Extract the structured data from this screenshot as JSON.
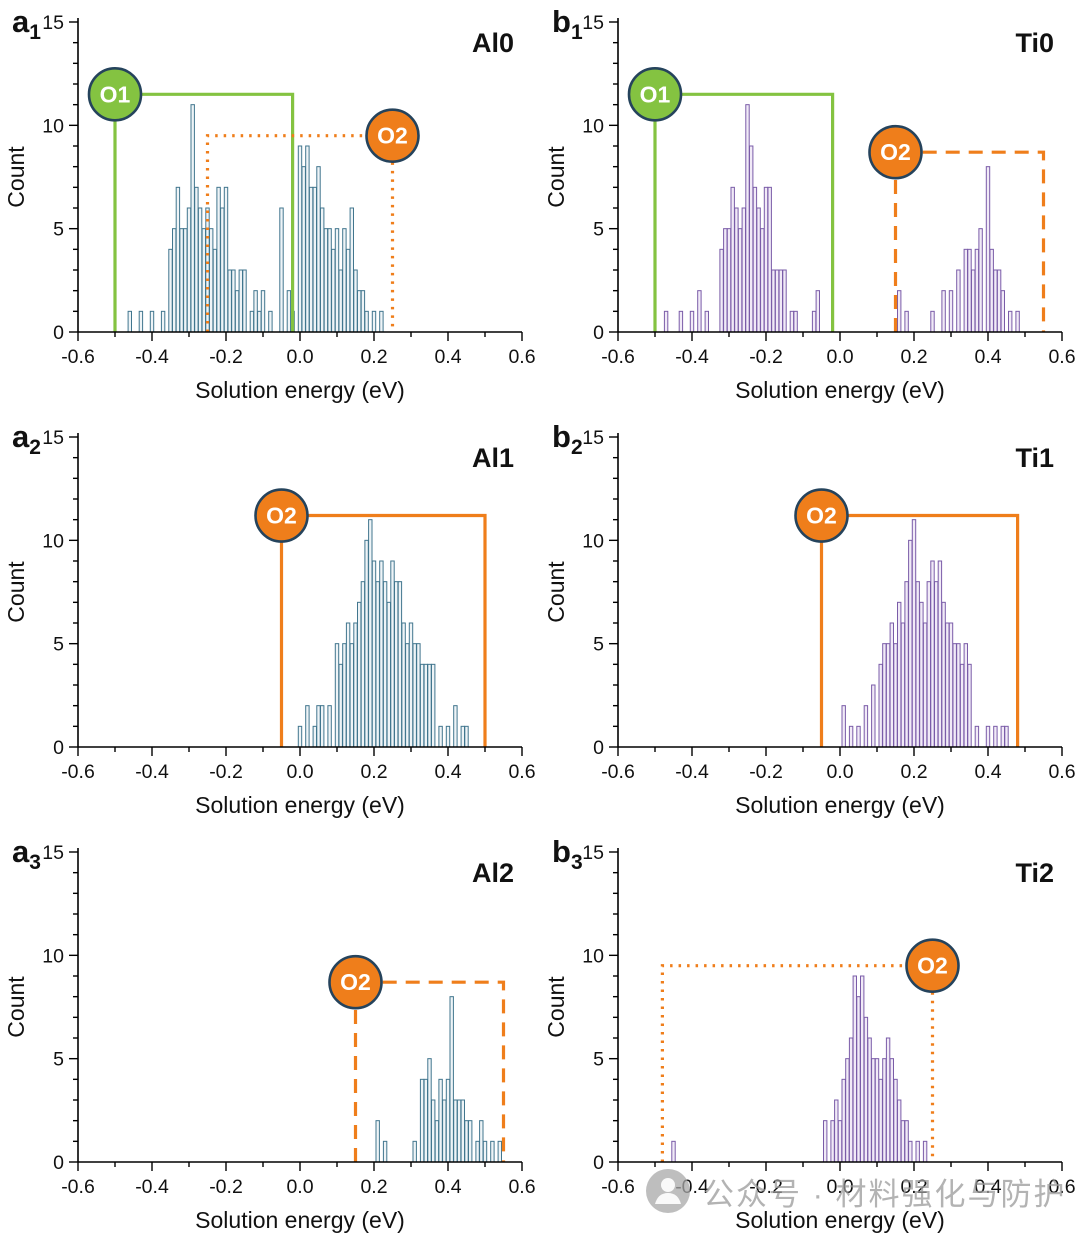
{
  "watermark": {
    "text": "公众号 · 材料强化与防护"
  },
  "colors": {
    "green": "#84c341",
    "orange": "#ef7e1b",
    "circle_border": "#25435c",
    "bar_blue": "#41768e",
    "bar_purple": "#7a5ca8"
  },
  "chart_data": [
    {
      "type": "bar",
      "panel_letter": "a",
      "panel_sub": "1",
      "title": "Al0",
      "xlabel": "Solution energy (eV)",
      "ylabel": "Count",
      "xlim": [
        -0.6,
        0.6
      ],
      "ylim": [
        0,
        15
      ],
      "x_major_ticks": [
        -0.6,
        -0.4,
        -0.2,
        0.0,
        0.2,
        0.4,
        0.6
      ],
      "y_major_ticks": [
        0,
        5,
        10,
        15
      ],
      "bin_width": 0.01,
      "bar_color": "#41768e",
      "bar_fill": "#eef4f7",
      "bars": [
        [
          -0.46,
          1
        ],
        [
          -0.43,
          1
        ],
        [
          -0.4,
          1
        ],
        [
          -0.37,
          1
        ],
        [
          -0.35,
          4
        ],
        [
          -0.34,
          5
        ],
        [
          -0.33,
          7
        ],
        [
          -0.32,
          5
        ],
        [
          -0.31,
          5
        ],
        [
          -0.3,
          6
        ],
        [
          -0.29,
          11
        ],
        [
          -0.28,
          7
        ],
        [
          -0.27,
          6
        ],
        [
          -0.26,
          5
        ],
        [
          -0.25,
          6
        ],
        [
          -0.24,
          5
        ],
        [
          -0.23,
          4
        ],
        [
          -0.22,
          7
        ],
        [
          -0.21,
          6
        ],
        [
          -0.2,
          7
        ],
        [
          -0.19,
          3
        ],
        [
          -0.18,
          3
        ],
        [
          -0.17,
          2
        ],
        [
          -0.16,
          3
        ],
        [
          -0.15,
          3
        ],
        [
          -0.13,
          1
        ],
        [
          -0.12,
          2
        ],
        [
          -0.11,
          1
        ],
        [
          -0.1,
          2
        ],
        [
          -0.08,
          1
        ],
        [
          -0.05,
          6
        ],
        [
          -0.03,
          2
        ],
        [
          -0.02,
          1
        ],
        [
          0.0,
          9
        ],
        [
          0.01,
          8
        ],
        [
          0.02,
          9
        ],
        [
          0.03,
          7
        ],
        [
          0.04,
          7
        ],
        [
          0.05,
          8
        ],
        [
          0.06,
          6
        ],
        [
          0.07,
          5
        ],
        [
          0.08,
          5
        ],
        [
          0.09,
          4
        ],
        [
          0.1,
          5
        ],
        [
          0.11,
          3
        ],
        [
          0.12,
          5
        ],
        [
          0.13,
          4
        ],
        [
          0.14,
          6
        ],
        [
          0.15,
          3
        ],
        [
          0.16,
          2
        ],
        [
          0.17,
          2
        ],
        [
          0.18,
          1
        ],
        [
          0.2,
          1
        ],
        [
          0.22,
          1
        ]
      ],
      "annotations": [
        {
          "label": "O1",
          "color": "#84c341",
          "style": "solid",
          "x0": -0.5,
          "x1": -0.02,
          "top": 11.5,
          "circle_at": "top-left"
        },
        {
          "label": "O2",
          "color": "#ef7e1b",
          "style": "dotted",
          "x0": -0.25,
          "x1": 0.25,
          "top": 9.5,
          "circle_at": "top-right"
        }
      ]
    },
    {
      "type": "bar",
      "panel_letter": "b",
      "panel_sub": "1",
      "title": "Ti0",
      "xlabel": "Solution energy (eV)",
      "ylabel": "Count",
      "xlim": [
        -0.6,
        0.6
      ],
      "ylim": [
        0,
        15
      ],
      "x_major_ticks": [
        -0.6,
        -0.4,
        -0.2,
        0.0,
        0.2,
        0.4,
        0.6
      ],
      "y_major_ticks": [
        0,
        5,
        10,
        15
      ],
      "bin_width": 0.01,
      "bar_color": "#7a5ca8",
      "bar_fill": "#f1eaf7",
      "bars": [
        [
          -0.47,
          1
        ],
        [
          -0.43,
          1
        ],
        [
          -0.4,
          1
        ],
        [
          -0.38,
          2
        ],
        [
          -0.36,
          1
        ],
        [
          -0.32,
          4
        ],
        [
          -0.31,
          5
        ],
        [
          -0.3,
          5
        ],
        [
          -0.29,
          7
        ],
        [
          -0.28,
          6
        ],
        [
          -0.27,
          5
        ],
        [
          -0.26,
          6
        ],
        [
          -0.25,
          11
        ],
        [
          -0.24,
          9
        ],
        [
          -0.23,
          7
        ],
        [
          -0.22,
          6
        ],
        [
          -0.21,
          5
        ],
        [
          -0.2,
          7
        ],
        [
          -0.19,
          7
        ],
        [
          -0.18,
          3
        ],
        [
          -0.17,
          3
        ],
        [
          -0.16,
          3
        ],
        [
          -0.15,
          3
        ],
        [
          -0.13,
          1
        ],
        [
          -0.12,
          1
        ],
        [
          -0.07,
          1
        ],
        [
          -0.06,
          2
        ],
        [
          0.16,
          2
        ],
        [
          0.18,
          1
        ],
        [
          0.25,
          1
        ],
        [
          0.28,
          2
        ],
        [
          0.3,
          2
        ],
        [
          0.32,
          3
        ],
        [
          0.34,
          4
        ],
        [
          0.35,
          4
        ],
        [
          0.36,
          3
        ],
        [
          0.37,
          4
        ],
        [
          0.38,
          5
        ],
        [
          0.4,
          8
        ],
        [
          0.41,
          4
        ],
        [
          0.42,
          3
        ],
        [
          0.43,
          3
        ],
        [
          0.44,
          2
        ],
        [
          0.46,
          1
        ],
        [
          0.48,
          1
        ]
      ],
      "annotations": [
        {
          "label": "O1",
          "color": "#84c341",
          "style": "solid",
          "x0": -0.5,
          "x1": -0.02,
          "top": 11.5,
          "circle_at": "top-left"
        },
        {
          "label": "O2",
          "color": "#ef7e1b",
          "style": "dashed",
          "x0": 0.15,
          "x1": 0.55,
          "top": 8.7,
          "circle_at": "top-left"
        }
      ]
    },
    {
      "type": "bar",
      "panel_letter": "a",
      "panel_sub": "2",
      "title": "Al1",
      "xlabel": "Solution energy (eV)",
      "ylabel": "Count",
      "xlim": [
        -0.6,
        0.6
      ],
      "ylim": [
        0,
        15
      ],
      "x_major_ticks": [
        -0.6,
        -0.4,
        -0.2,
        0.0,
        0.2,
        0.4,
        0.6
      ],
      "y_major_ticks": [
        0,
        5,
        10,
        15
      ],
      "bin_width": 0.01,
      "bar_color": "#41768e",
      "bar_fill": "#eef4f7",
      "bars": [
        [
          0.0,
          1
        ],
        [
          0.02,
          2
        ],
        [
          0.04,
          1
        ],
        [
          0.05,
          2
        ],
        [
          0.06,
          2
        ],
        [
          0.08,
          2
        ],
        [
          0.1,
          5
        ],
        [
          0.11,
          4
        ],
        [
          0.12,
          5
        ],
        [
          0.13,
          6
        ],
        [
          0.14,
          5
        ],
        [
          0.15,
          6
        ],
        [
          0.16,
          7
        ],
        [
          0.17,
          8
        ],
        [
          0.18,
          10
        ],
        [
          0.19,
          11
        ],
        [
          0.2,
          9
        ],
        [
          0.21,
          8
        ],
        [
          0.22,
          9
        ],
        [
          0.23,
          8
        ],
        [
          0.24,
          7
        ],
        [
          0.25,
          9
        ],
        [
          0.26,
          8
        ],
        [
          0.27,
          8
        ],
        [
          0.28,
          6
        ],
        [
          0.29,
          5
        ],
        [
          0.3,
          6
        ],
        [
          0.31,
          5
        ],
        [
          0.32,
          5
        ],
        [
          0.33,
          4
        ],
        [
          0.34,
          4
        ],
        [
          0.35,
          4
        ],
        [
          0.36,
          4
        ],
        [
          0.38,
          1
        ],
        [
          0.4,
          1
        ],
        [
          0.42,
          2
        ],
        [
          0.44,
          1
        ],
        [
          0.45,
          1
        ]
      ],
      "annotations": [
        {
          "label": "O2",
          "color": "#ef7e1b",
          "style": "solid",
          "x0": -0.05,
          "x1": 0.5,
          "top": 11.2,
          "circle_at": "top-left"
        }
      ]
    },
    {
      "type": "bar",
      "panel_letter": "b",
      "panel_sub": "2",
      "title": "Ti1",
      "xlabel": "Solution energy (eV)",
      "ylabel": "Count",
      "xlim": [
        -0.6,
        0.6
      ],
      "ylim": [
        0,
        15
      ],
      "x_major_ticks": [
        -0.6,
        -0.4,
        -0.2,
        0.0,
        0.2,
        0.4,
        0.6
      ],
      "y_major_ticks": [
        0,
        5,
        10,
        15
      ],
      "bin_width": 0.01,
      "bar_color": "#7a5ca8",
      "bar_fill": "#f1eaf7",
      "bars": [
        [
          0.01,
          2
        ],
        [
          0.03,
          1
        ],
        [
          0.05,
          1
        ],
        [
          0.07,
          2
        ],
        [
          0.09,
          3
        ],
        [
          0.11,
          4
        ],
        [
          0.12,
          5
        ],
        [
          0.13,
          5
        ],
        [
          0.14,
          6
        ],
        [
          0.15,
          5
        ],
        [
          0.16,
          7
        ],
        [
          0.17,
          6
        ],
        [
          0.18,
          8
        ],
        [
          0.19,
          10
        ],
        [
          0.2,
          11
        ],
        [
          0.21,
          8
        ],
        [
          0.22,
          7
        ],
        [
          0.23,
          6
        ],
        [
          0.24,
          8
        ],
        [
          0.25,
          9
        ],
        [
          0.26,
          8
        ],
        [
          0.27,
          9
        ],
        [
          0.28,
          7
        ],
        [
          0.29,
          6
        ],
        [
          0.3,
          6
        ],
        [
          0.31,
          5
        ],
        [
          0.32,
          5
        ],
        [
          0.33,
          4
        ],
        [
          0.34,
          5
        ],
        [
          0.35,
          4
        ],
        [
          0.37,
          1
        ],
        [
          0.4,
          1
        ],
        [
          0.42,
          1
        ],
        [
          0.44,
          1
        ],
        [
          0.45,
          1
        ]
      ],
      "annotations": [
        {
          "label": "O2",
          "color": "#ef7e1b",
          "style": "solid",
          "x0": -0.05,
          "x1": 0.48,
          "top": 11.2,
          "circle_at": "top-left"
        }
      ]
    },
    {
      "type": "bar",
      "panel_letter": "a",
      "panel_sub": "3",
      "title": "Al2",
      "xlabel": "Solution energy (eV)",
      "ylabel": "Count",
      "xlim": [
        -0.6,
        0.6
      ],
      "ylim": [
        0,
        15
      ],
      "x_major_ticks": [
        -0.6,
        -0.4,
        -0.2,
        0.0,
        0.2,
        0.4,
        0.6
      ],
      "y_major_ticks": [
        0,
        5,
        10,
        15
      ],
      "bin_width": 0.01,
      "bar_color": "#41768e",
      "bar_fill": "#eef4f7",
      "bars": [
        [
          0.21,
          2
        ],
        [
          0.23,
          1
        ],
        [
          0.31,
          1
        ],
        [
          0.33,
          4
        ],
        [
          0.34,
          4
        ],
        [
          0.35,
          5
        ],
        [
          0.36,
          3
        ],
        [
          0.37,
          2
        ],
        [
          0.38,
          4
        ],
        [
          0.39,
          3
        ],
        [
          0.4,
          4
        ],
        [
          0.41,
          8
        ],
        [
          0.42,
          3
        ],
        [
          0.43,
          3
        ],
        [
          0.44,
          3
        ],
        [
          0.45,
          2
        ],
        [
          0.46,
          2
        ],
        [
          0.48,
          1
        ],
        [
          0.49,
          2
        ],
        [
          0.5,
          1
        ],
        [
          0.52,
          1
        ],
        [
          0.54,
          1
        ]
      ],
      "annotations": [
        {
          "label": "O2",
          "color": "#ef7e1b",
          "style": "dashed",
          "x0": 0.15,
          "x1": 0.55,
          "top": 8.7,
          "circle_at": "top-left"
        }
      ]
    },
    {
      "type": "bar",
      "panel_letter": "b",
      "panel_sub": "3",
      "title": "Ti2",
      "xlabel": "Solution energy (eV)",
      "ylabel": "Count",
      "xlim": [
        -0.6,
        0.6
      ],
      "ylim": [
        0,
        15
      ],
      "x_major_ticks": [
        -0.6,
        -0.4,
        -0.2,
        0.0,
        0.2,
        0.4,
        0.6
      ],
      "y_major_ticks": [
        0,
        5,
        10,
        15
      ],
      "bin_width": 0.01,
      "bar_color": "#7a5ca8",
      "bar_fill": "#f1eaf7",
      "bars": [
        [
          -0.45,
          1
        ],
        [
          -0.04,
          2
        ],
        [
          -0.02,
          2
        ],
        [
          -0.01,
          3
        ],
        [
          0.0,
          2
        ],
        [
          0.01,
          4
        ],
        [
          0.02,
          5
        ],
        [
          0.03,
          6
        ],
        [
          0.04,
          9
        ],
        [
          0.05,
          8
        ],
        [
          0.06,
          9
        ],
        [
          0.07,
          7
        ],
        [
          0.08,
          6
        ],
        [
          0.09,
          5
        ],
        [
          0.1,
          5
        ],
        [
          0.11,
          4
        ],
        [
          0.12,
          5
        ],
        [
          0.13,
          6
        ],
        [
          0.14,
          5
        ],
        [
          0.15,
          4
        ],
        [
          0.16,
          3
        ],
        [
          0.17,
          2
        ],
        [
          0.18,
          2
        ],
        [
          0.19,
          1
        ],
        [
          0.21,
          1
        ],
        [
          0.23,
          1
        ]
      ],
      "annotations": [
        {
          "label": "O2",
          "color": "#ef7e1b",
          "style": "dotted",
          "x0": -0.48,
          "x1": 0.25,
          "top": 9.5,
          "circle_at": "top-right"
        }
      ]
    }
  ]
}
